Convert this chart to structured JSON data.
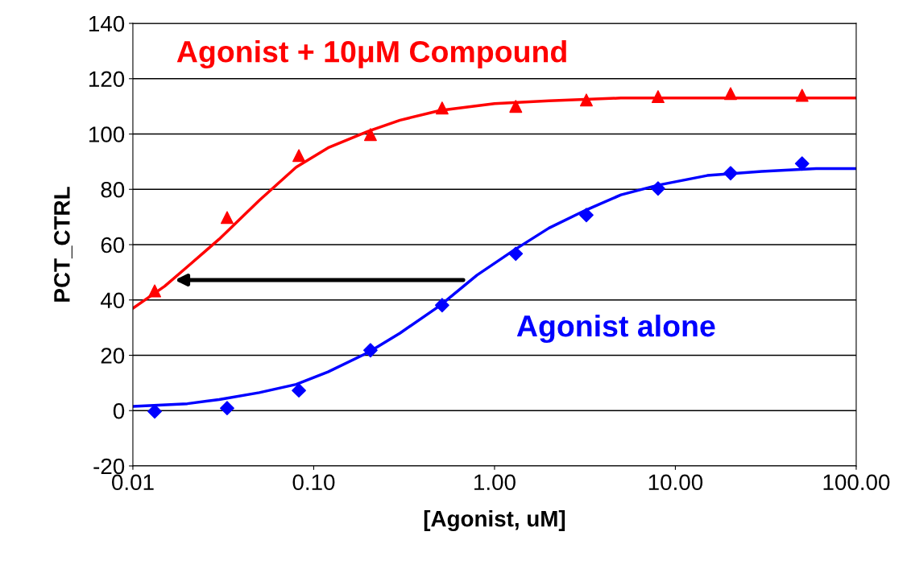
{
  "chart_data": {
    "type": "scatter",
    "xlabel": "[Agonist, uM]",
    "ylabel": "PCT_CTRL",
    "log": "x",
    "xlim": [
      0.01,
      100
    ],
    "xticks": [
      {
        "value": 0.01,
        "label": "0.01"
      },
      {
        "value": 0.1,
        "label": "0.10"
      },
      {
        "value": 1,
        "label": "1.00"
      },
      {
        "value": 10,
        "label": "10.00"
      },
      {
        "value": 100,
        "label": "100.00"
      }
    ],
    "ylim": [
      -20,
      140
    ],
    "yticks": [
      -20,
      0,
      20,
      40,
      60,
      80,
      100,
      120,
      140
    ],
    "grid": "y",
    "legend": false,
    "series": [
      {
        "name": "Agonist + 10μM Compound",
        "color": "#ff0000",
        "marker": "triangle",
        "x": [
          0.0132,
          0.0332,
          0.0828,
          0.206,
          0.513,
          1.31,
          3.22,
          8.02,
          20.2,
          50.2
        ],
        "values": [
          43.3,
          69.8,
          92.2,
          99.8,
          109.4,
          110,
          112.3,
          113.5,
          114.6,
          114
        ]
      },
      {
        "color": "#ff0000",
        "type": "line",
        "marker": "none",
        "x": [
          0.01,
          0.015,
          0.02,
          0.03,
          0.05,
          0.08,
          0.12,
          0.2,
          0.3,
          0.5,
          1,
          2,
          5,
          10,
          100
        ],
        "values": [
          37,
          45,
          52,
          62,
          76,
          88,
          95,
          101,
          105,
          108.5,
          111,
          112,
          113,
          113,
          113
        ]
      },
      {
        "name": "Agonist alone",
        "color": "#0000ff",
        "marker": "diamond",
        "x": [
          0.0132,
          0.0332,
          0.0828,
          0.206,
          0.513,
          1.31,
          3.22,
          8.02,
          20.2,
          50.2
        ],
        "values": [
          -0.3,
          0.9,
          7.3,
          21.8,
          38.1,
          56.7,
          70.7,
          80.3,
          85.8,
          89.3
        ]
      },
      {
        "color": "#0000ff",
        "type": "line",
        "marker": "none",
        "x": [
          0.01,
          0.02,
          0.03,
          0.05,
          0.08,
          0.12,
          0.2,
          0.3,
          0.5,
          0.8,
          1.28,
          2,
          3.2,
          5,
          8,
          15,
          30,
          60,
          100
        ],
        "values": [
          1.5,
          2.5,
          4,
          6.5,
          9.5,
          14,
          21,
          28,
          38,
          49,
          58,
          66,
          72.5,
          78,
          81.5,
          85,
          86.5,
          87.5,
          87.5
        ]
      }
    ]
  }
}
